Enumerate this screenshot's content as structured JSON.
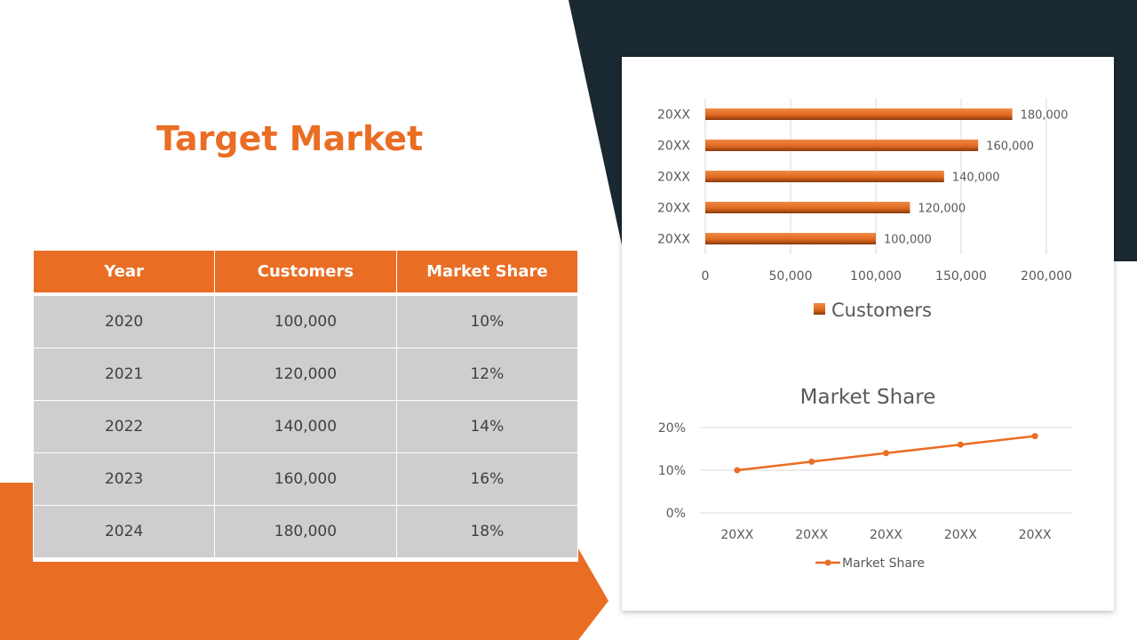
{
  "page": {
    "title": "Target Market",
    "colors": {
      "accent": "#ea6d24",
      "dark": "#1a2831",
      "table_cell": "#cfcdcd"
    }
  },
  "table": {
    "headers": [
      "Year",
      "Customers",
      "Market Share"
    ],
    "rows": [
      [
        "2020",
        "100,000",
        "10%"
      ],
      [
        "2021",
        "120,000",
        "12%"
      ],
      [
        "2022",
        "140,000",
        "14%"
      ],
      [
        "2023",
        "160,000",
        "16%"
      ],
      [
        "2024",
        "180,000",
        "18%"
      ]
    ]
  },
  "chart_data": [
    {
      "type": "bar",
      "orientation": "horizontal",
      "categories": [
        "20XX",
        "20XX",
        "20XX",
        "20XX",
        "20XX"
      ],
      "series": [
        {
          "name": "Customers",
          "values": [
            100000,
            120000,
            140000,
            160000,
            180000
          ]
        }
      ],
      "data_labels": [
        "100,000",
        "120,000",
        "140,000",
        "160,000",
        "180,000"
      ],
      "xlim": [
        0,
        200000
      ],
      "x_ticks": [
        "0",
        "50,000",
        "100,000",
        "150,000",
        "200,000"
      ],
      "grid": true,
      "legend": "bottom",
      "color": "#ea6d24"
    },
    {
      "type": "line",
      "title": "Market Share",
      "categories": [
        "20XX",
        "20XX",
        "20XX",
        "20XX",
        "20XX"
      ],
      "series": [
        {
          "name": "Market Share",
          "values": [
            10,
            12,
            14,
            16,
            18
          ]
        }
      ],
      "ylim": [
        0,
        20
      ],
      "y_ticks": [
        "0%",
        "10%",
        "20%"
      ],
      "grid": true,
      "legend": "bottom",
      "color": "#ea6d24"
    }
  ]
}
